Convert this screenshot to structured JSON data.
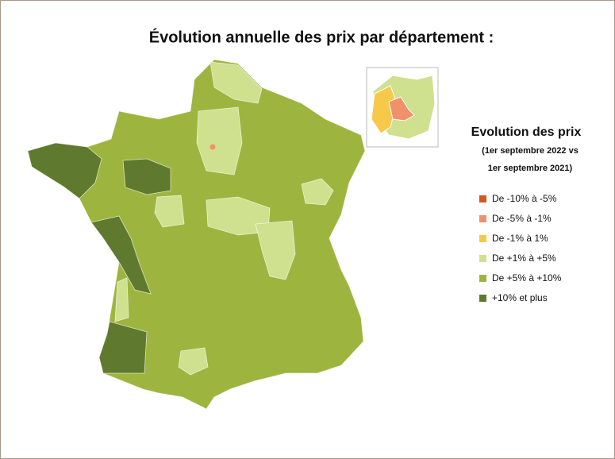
{
  "header": {
    "title": "Évolution annuelle des prix par département :"
  },
  "legend": {
    "title": "Evolution des prix",
    "subtitle": [
      "(1er septembre 2022 vs",
      "1er septembre 2021)"
    ],
    "items": [
      {
        "label": "De -10% à -5%",
        "color": "#d4561f"
      },
      {
        "label": "De -5% à -1%",
        "color": "#f0916a"
      },
      {
        "label": "De -1% à 1%",
        "color": "#f7c948"
      },
      {
        "label": "De +1% à +5%",
        "color": "#cfe08f"
      },
      {
        "label": "De +5% à +10%",
        "color": "#9db53f"
      },
      {
        "label": "+10% et plus",
        "color": "#5f7a2e"
      }
    ]
  }
}
